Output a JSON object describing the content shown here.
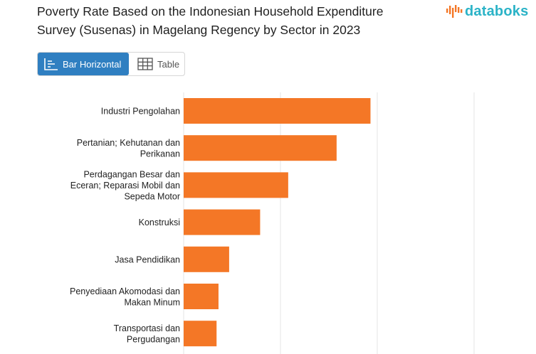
{
  "title": "Poverty Rate Based on the Indonesian Household Expenditure Survey (Susenas) in Magelang Regency by Sector in 2023",
  "brand": {
    "name": "databoks",
    "color": "#2bb3c7"
  },
  "view_toggle": {
    "bar_label": "Bar Horizontal",
    "table_label": "Table",
    "active": "bar",
    "active_color": "#2f7fc1"
  },
  "chart_data": {
    "type": "bar",
    "orientation": "horizontal",
    "categories": [
      [
        "Industri Pengolahan"
      ],
      [
        "Pertanian; Kehutanan dan",
        "Perikanan"
      ],
      [
        "Perdagangan Besar dan",
        "Eceran; Reparasi Mobil dan",
        "Sepeda Motor"
      ],
      [
        "Konstruksi"
      ],
      [
        "Jasa Pendidikan"
      ],
      [
        "Penyediaan Akomodasi dan",
        "Makan Minum"
      ],
      [
        "Transportasi dan",
        "Pergudangan"
      ]
    ],
    "values": [
      19.3,
      15.8,
      10.8,
      7.9,
      4.7,
      3.6,
      3.4
    ],
    "xlim": [
      0,
      30
    ],
    "gridlines": [
      0,
      10,
      20,
      30
    ],
    "bar_color": "#f47726",
    "grid": true
  }
}
